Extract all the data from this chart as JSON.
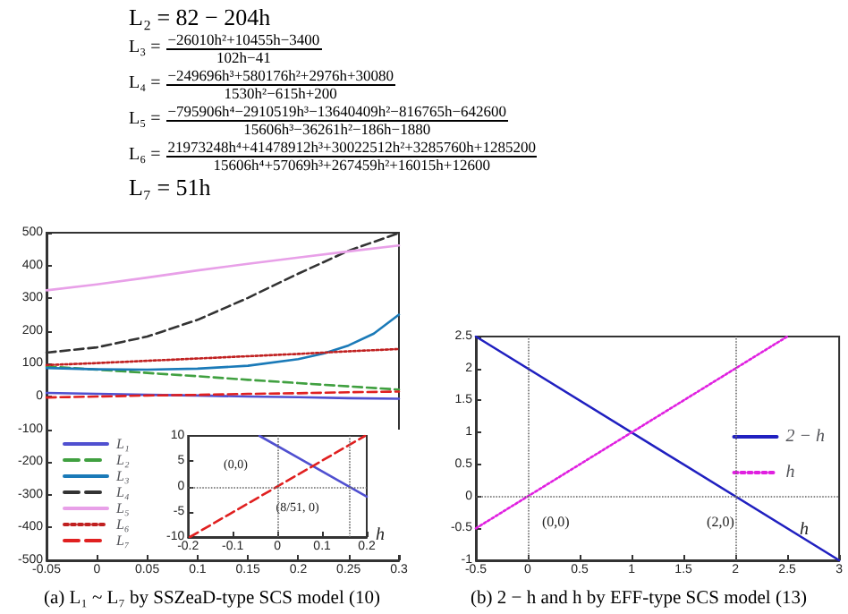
{
  "chart_data": [
    {
      "type": "line",
      "x": [
        -0.05,
        0,
        0.05,
        0.1,
        0.15,
        0.2,
        0.25,
        0.3
      ],
      "xlim": [
        -0.05,
        0.3
      ],
      "xticks": [
        -0.05,
        0,
        0.05,
        0.1,
        0.15,
        0.2,
        0.25,
        0.3
      ],
      "ylim": [
        -500,
        500
      ],
      "yticks": [
        -500,
        -400,
        -300,
        -200,
        -100,
        0,
        100,
        200,
        300,
        400,
        500
      ],
      "legend": "bottom left",
      "series": [
        {
          "name": "L₁",
          "color": "#5050d0",
          "values": [
            11,
            8,
            5,
            3,
            0,
            -2,
            -5,
            -7
          ]
        },
        {
          "name": "L₂",
          "color": "#40a040",
          "line_style": "dashed",
          "values": [
            92,
            82,
            72,
            62,
            51,
            41,
            31,
            21
          ]
        },
        {
          "name": "L₃",
          "color": "#1a7ab8",
          "x": [
            -0.05,
            0,
            0.05,
            0.1,
            0.15,
            0.2,
            0.225,
            0.25,
            0.275,
            0.3
          ],
          "values": [
            87,
            83,
            82,
            85,
            94,
            114,
            131,
            156,
            192,
            250
          ]
        },
        {
          "name": "L₄",
          "color": "#333333",
          "line_style": "dashed",
          "values": [
            134,
            150,
            183,
            234,
            301,
            375,
            445,
            499
          ]
        },
        {
          "name": "L₅",
          "color": "#e8a0e8",
          "values": [
            324,
            342,
            363,
            385,
            405,
            424,
            443,
            461
          ]
        },
        {
          "name": "L₆",
          "color": "#c02020",
          "line_style": "dotted",
          "values": [
            96,
            102,
            109,
            116,
            123,
            130,
            138,
            145
          ]
        },
        {
          "name": "L₇",
          "color": "#e02020",
          "line_style": "dashed",
          "values": [
            -3,
            0,
            3,
            5,
            8,
            10,
            13,
            15
          ]
        }
      ],
      "annotations": [
        "L₂ = 82 − 204h",
        "L₃ =",
        "−26010h²+10455h−3400",
        "102h−41",
        "L₄ =",
        "−249696h³+580176h²+2976h+30080",
        "1530h²−615h+200",
        "L₅ =",
        "−795906h⁴−2910519h³−13640409h²−816765h−642600",
        "15606h³−36261h²−186h−1880",
        "L₆ =",
        "21973248h⁴+41478912h³+30022512h²+3285760h+1285200",
        "15606h⁴+57069h³+267459h²+16015h+12600",
        "L₇ = 51h",
        "(a) L₁ ~ L₇ by SSZeaD-type SCS model (10)"
      ]
    },
    {
      "type": "line",
      "xlim": [
        -0.2,
        0.2
      ],
      "xticks": [
        -0.2,
        -0.1,
        0,
        0.1,
        0.2
      ],
      "ylim": [
        -10,
        10
      ],
      "yticks": [
        -10,
        -5,
        0,
        5,
        10
      ],
      "xlabel": "h",
      "series": [
        {
          "color": "#5050d0",
          "x": [
            -0.04,
            0.2
          ],
          "values": [
            10,
            -2
          ]
        },
        {
          "color": "#e02020",
          "line_style": "dashed",
          "x": [
            -0.196,
            0.196
          ],
          "values": [
            -10,
            10
          ]
        }
      ],
      "ref_lines": [
        {
          "axis": "x",
          "value": 0,
          "line_style": "dotted"
        },
        {
          "axis": "x",
          "value": 0.157,
          "line_style": "dotted"
        },
        {
          "axis": "y",
          "value": 0,
          "line_style": "dotted"
        }
      ],
      "annotations": [
        {
          "text": "(0,0)",
          "x": 0,
          "y": 0
        },
        {
          "text": "(8/51, 0)",
          "x": 0.157,
          "y": 0
        }
      ]
    },
    {
      "type": "line",
      "xlim": [
        -0.5,
        3
      ],
      "xticks": [
        -0.5,
        0,
        0.5,
        1,
        1.5,
        2,
        2.5,
        3
      ],
      "ylim": [
        -1,
        2.5
      ],
      "yticks": [
        -1,
        -0.5,
        0,
        0.5,
        1,
        1.5,
        2,
        2.5
      ],
      "xlabel": "h",
      "legend": "right",
      "series": [
        {
          "name": "2 − h",
          "color": "#2020c0",
          "x": [
            -0.5,
            3
          ],
          "values": [
            2.5,
            -1
          ]
        },
        {
          "name": "h",
          "color": "#e020e0",
          "line_style": "dotted",
          "x": [
            -0.5,
            2.5
          ],
          "values": [
            -0.5,
            2.5
          ]
        }
      ],
      "ref_lines": [
        {
          "axis": "x",
          "value": 0,
          "line_style": "dotted"
        },
        {
          "axis": "x",
          "value": 2,
          "line_style": "dotted"
        },
        {
          "axis": "y",
          "value": 0,
          "line_style": "dotted"
        }
      ],
      "annotations": [
        {
          "text": "(0,0)",
          "x": 0,
          "y": 0
        },
        {
          "text": "(2,0)",
          "x": 2,
          "y": 0
        },
        "(b) 2 − h and h by EFF-type SCS model (13)"
      ]
    }
  ]
}
